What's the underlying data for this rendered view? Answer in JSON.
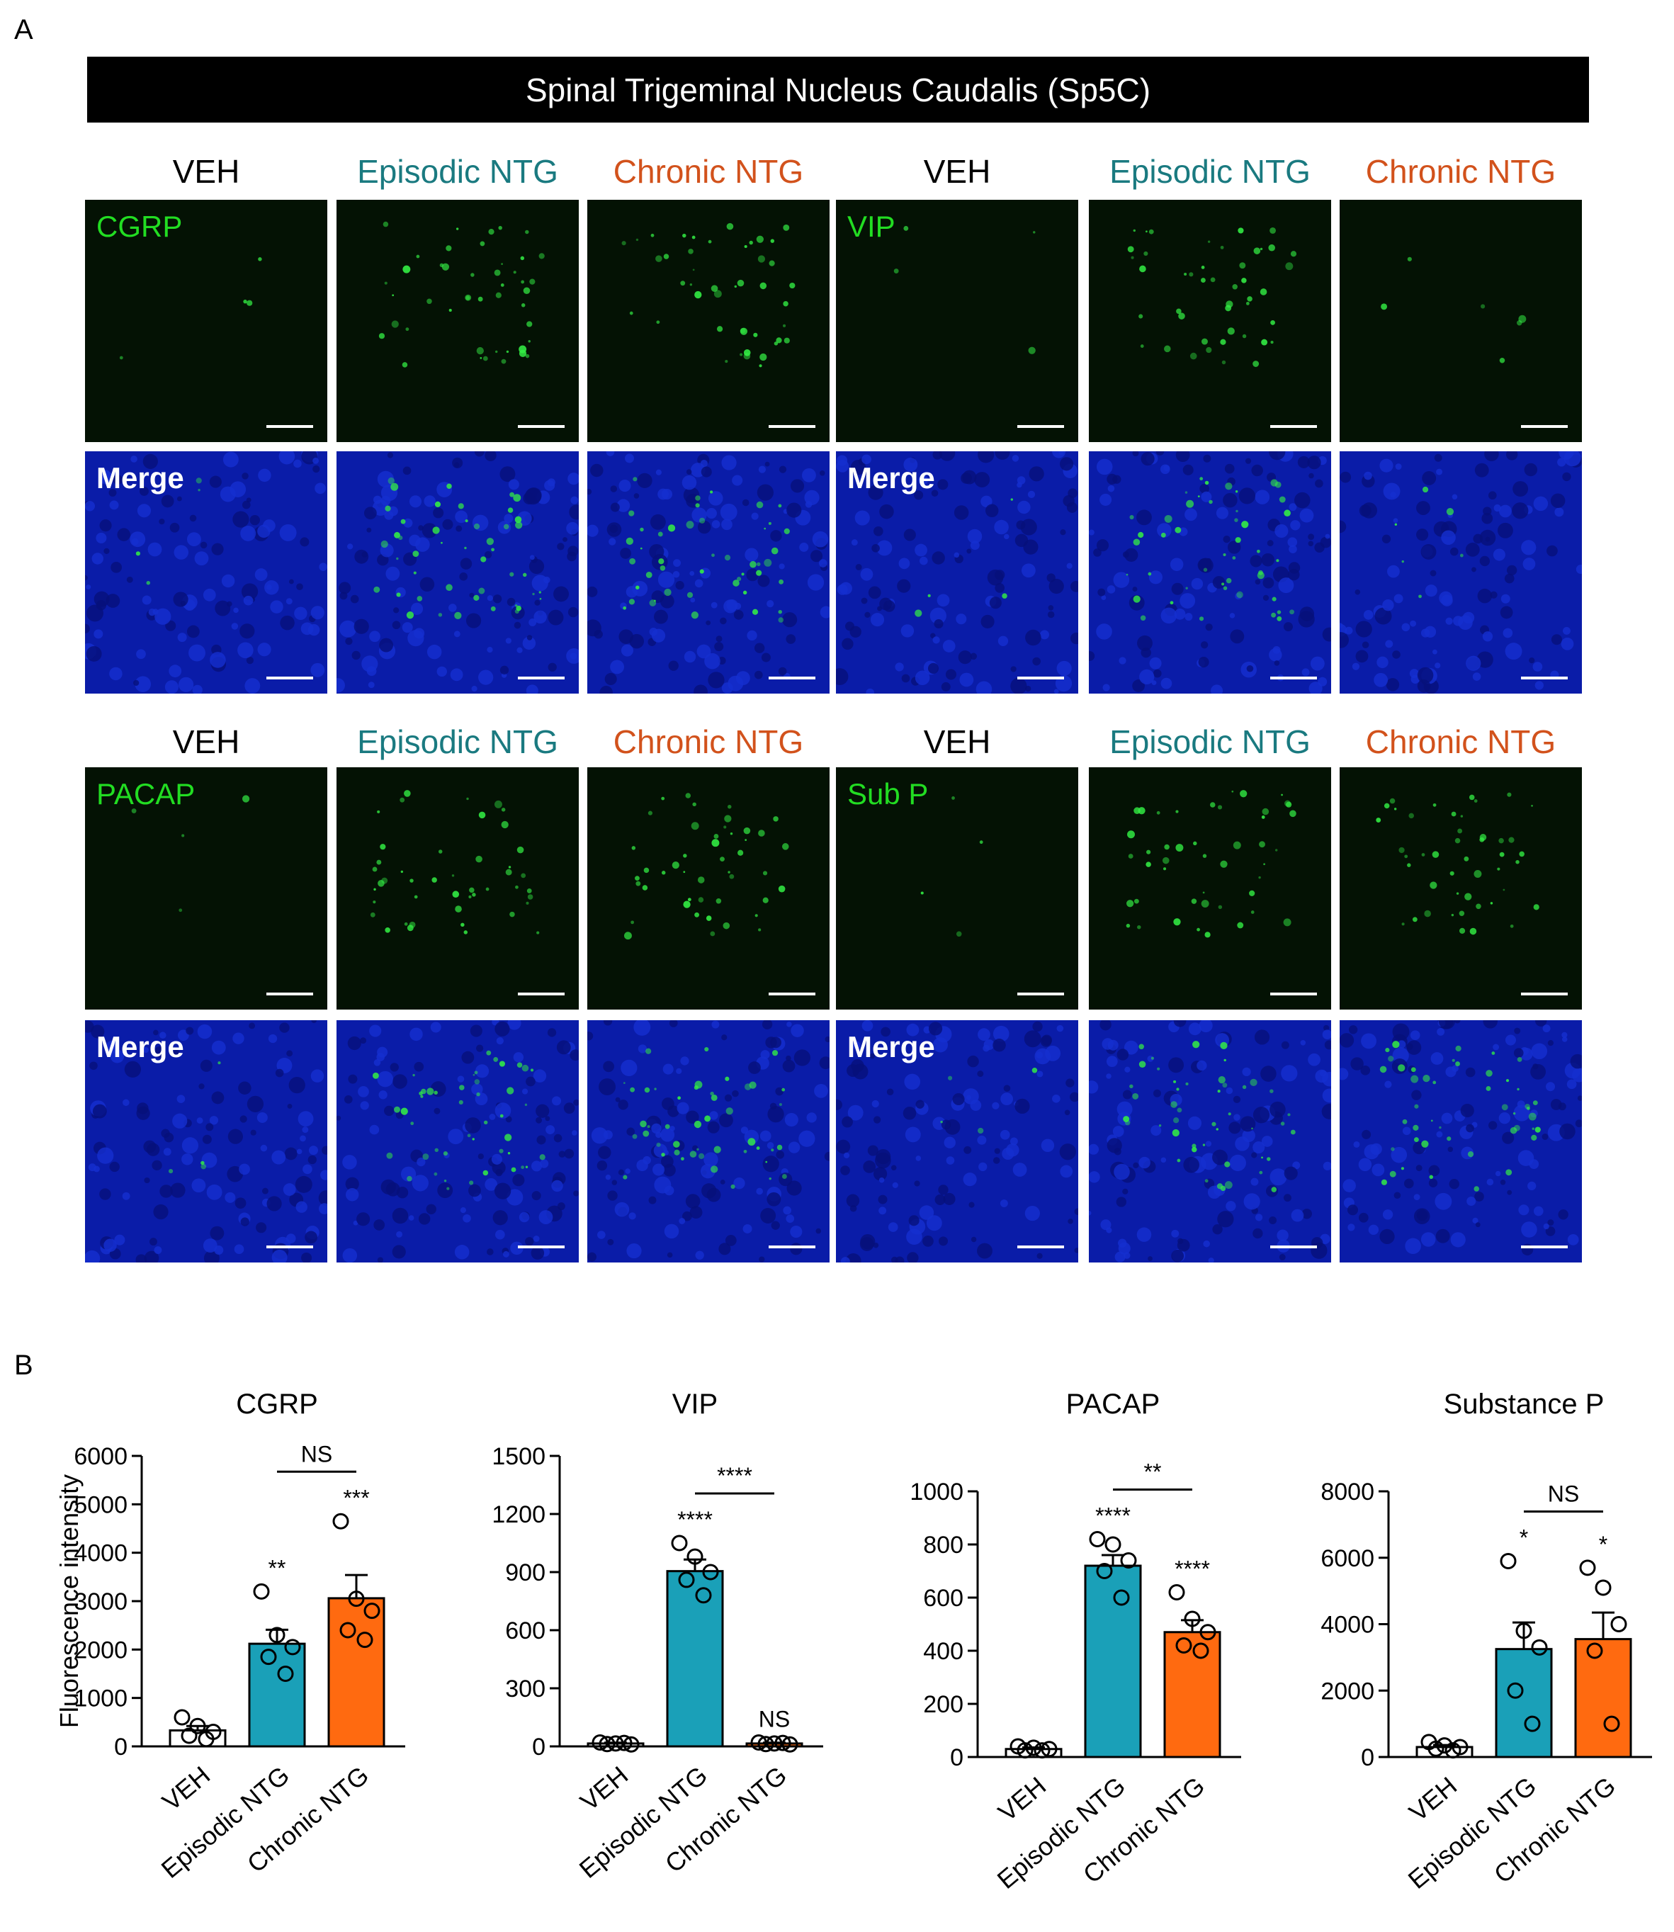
{
  "panel_a": {
    "letter": "A",
    "title": "Spinal Trigeminal Nucleus Caudalis (Sp5C)",
    "groups": [
      "VEH",
      "Episodic NTG",
      "Chronic NTG"
    ],
    "group_colors": [
      "#000000",
      "#1a7a80",
      "#d2521c"
    ],
    "markers": [
      "CGRP",
      "VIP",
      "PACAP",
      "Sub P"
    ],
    "merge_label": "Merge",
    "marker_color": "#22dd22"
  },
  "panel_b": {
    "letter": "B"
  },
  "chart_data": [
    {
      "type": "bar",
      "title": "CGRP",
      "ylabel": "Fluorescence intensity",
      "categories": [
        "VEH",
        "Episodic NTG",
        "Chronic NTG"
      ],
      "values": [
        330,
        2120,
        3060
      ],
      "errors": [
        90,
        290,
        480
      ],
      "points": [
        [
          600,
          420,
          300,
          220,
          150
        ],
        [
          3200,
          2300,
          2050,
          1850,
          1500
        ],
        [
          4650,
          3050,
          2800,
          2400,
          2200
        ]
      ],
      "colors": [
        "#ffffff",
        "#1aa0b8",
        "#ff6a10"
      ],
      "ylim": [
        0,
        6000
      ],
      "yticks": [
        0,
        1000,
        2000,
        3000,
        4000,
        5000,
        6000
      ],
      "significance": [
        "",
        "**",
        "***"
      ],
      "comparison": {
        "from": 1,
        "to": 2,
        "label": "NS"
      }
    },
    {
      "type": "bar",
      "title": "VIP",
      "ylabel": "",
      "categories": [
        "VEH",
        "Episodic NTG",
        "Chronic NTG"
      ],
      "values": [
        15,
        905,
        15
      ],
      "errors": [
        4,
        60,
        4
      ],
      "points": [
        [
          20,
          15,
          10,
          12,
          18
        ],
        [
          1050,
          980,
          900,
          860,
          780
        ],
        [
          20,
          15,
          10,
          12,
          18
        ]
      ],
      "colors": [
        "#ffffff",
        "#1aa0b8",
        "#ff6a10"
      ],
      "ylim": [
        0,
        1500
      ],
      "yticks": [
        0,
        300,
        600,
        900,
        1200,
        1500
      ],
      "significance": [
        "",
        "****",
        "NS"
      ],
      "comparison": {
        "from": 1,
        "to": 2,
        "label": "****"
      }
    },
    {
      "type": "bar",
      "title": "PACAP",
      "ylabel": "",
      "categories": [
        "VEH",
        "Episodic NTG",
        "Chronic NTG"
      ],
      "values": [
        30,
        720,
        470
      ],
      "errors": [
        6,
        40,
        45
      ],
      "points": [
        [
          40,
          35,
          30,
          25,
          25
        ],
        [
          820,
          800,
          740,
          700,
          600
        ],
        [
          620,
          520,
          470,
          420,
          400
        ]
      ],
      "colors": [
        "#ffffff",
        "#1aa0b8",
        "#ff6a10"
      ],
      "ylim": [
        0,
        1000
      ],
      "yticks": [
        0,
        200,
        400,
        600,
        800,
        1000
      ],
      "significance": [
        "",
        "****",
        "****"
      ],
      "comparison": {
        "from": 1,
        "to": 2,
        "label": "**"
      }
    },
    {
      "type": "bar",
      "title": "Substance P",
      "ylabel": "",
      "categories": [
        "VEH",
        "Episodic NTG",
        "Chronic NTG"
      ],
      "values": [
        300,
        3250,
        3550
      ],
      "errors": [
        60,
        800,
        800
      ],
      "points": [
        [
          450,
          350,
          300,
          250,
          200
        ],
        [
          5900,
          3800,
          3300,
          2000,
          1000
        ],
        [
          5700,
          5100,
          4000,
          3200,
          1000
        ]
      ],
      "colors": [
        "#ffffff",
        "#1aa0b8",
        "#ff6a10"
      ],
      "ylim": [
        0,
        8000
      ],
      "yticks": [
        0,
        2000,
        4000,
        6000,
        8000
      ],
      "significance": [
        "",
        "*",
        "*"
      ],
      "comparison": {
        "from": 1,
        "to": 2,
        "label": "NS"
      }
    }
  ]
}
